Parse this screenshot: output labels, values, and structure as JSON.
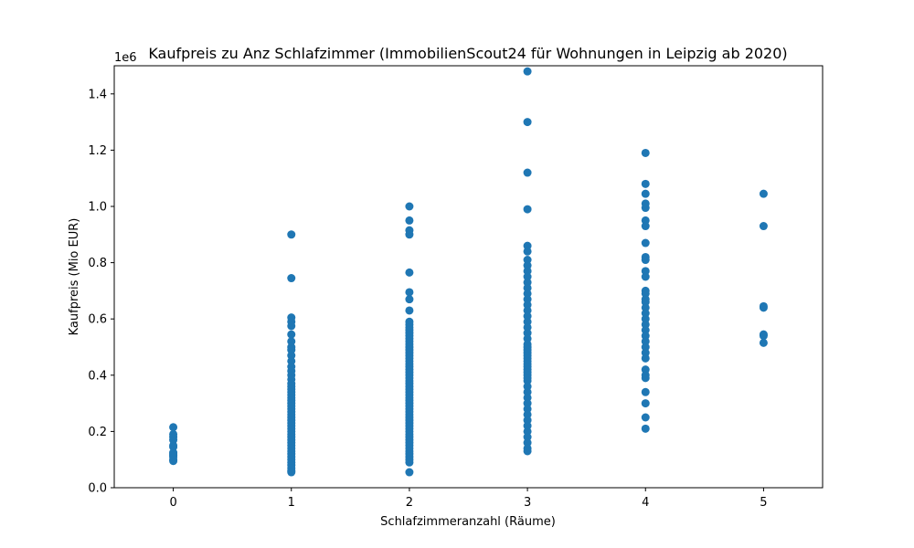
{
  "chart_data": {
    "type": "scatter",
    "title": "Kaufpreis zu Anz Schlafzimmer (ImmobilienScout24 für Wohnungen in Leipzig ab 2020)",
    "xlabel": "Schlafzimmeranzahl (Räume)",
    "ylabel": "Kaufpreis (Mio EUR)",
    "y_offset_label": "1e6",
    "xlim": [
      -0.5,
      5.5
    ],
    "ylim": [
      0,
      1500000
    ],
    "x_ticks": [
      0,
      1,
      2,
      3,
      4,
      5
    ],
    "y_ticks": [
      0,
      200000,
      400000,
      600000,
      800000,
      1000000,
      1200000,
      1400000
    ],
    "y_tick_labels": [
      "0.0",
      "0.2",
      "0.4",
      "0.6",
      "0.8",
      "1.0",
      "1.2",
      "1.4"
    ],
    "grid": false,
    "color": "#1f77b4",
    "points": [
      {
        "x": 0,
        "values": [
          95000,
          100000,
          110000,
          115000,
          120000,
          125000,
          145000,
          150000,
          170000,
          180000,
          190000,
          215000
        ]
      },
      {
        "x": 1,
        "values": [
          900000,
          745000,
          605000,
          590000,
          575000,
          545000,
          520000,
          500000,
          490000,
          470000,
          450000,
          430000,
          415000,
          400000,
          385000,
          370000,
          360000,
          350000,
          340000,
          330000,
          320000,
          310000,
          300000,
          290000,
          280000,
          270000,
          260000,
          250000,
          240000,
          230000,
          220000,
          210000,
          200000,
          190000,
          180000,
          170000,
          160000,
          150000,
          140000,
          130000,
          120000,
          110000,
          100000,
          90000,
          80000,
          70000,
          60000,
          55000
        ]
      },
      {
        "x": 2,
        "values": [
          1000000,
          950000,
          915000,
          900000,
          765000,
          695000,
          670000,
          630000,
          590000,
          580000,
          570000,
          560000,
          550000,
          540000,
          530000,
          520000,
          510000,
          500000,
          490000,
          480000,
          470000,
          460000,
          450000,
          440000,
          430000,
          420000,
          410000,
          400000,
          390000,
          380000,
          370000,
          360000,
          350000,
          340000,
          330000,
          320000,
          310000,
          300000,
          290000,
          280000,
          270000,
          260000,
          250000,
          240000,
          230000,
          220000,
          210000,
          200000,
          190000,
          180000,
          170000,
          160000,
          150000,
          140000,
          130000,
          120000,
          110000,
          100000,
          90000,
          55000
        ]
      },
      {
        "x": 3,
        "values": [
          1480000,
          1300000,
          1120000,
          990000,
          860000,
          840000,
          810000,
          790000,
          770000,
          750000,
          730000,
          710000,
          690000,
          670000,
          650000,
          630000,
          610000,
          590000,
          570000,
          550000,
          530000,
          510000,
          500000,
          490000,
          480000,
          470000,
          460000,
          450000,
          440000,
          430000,
          420000,
          410000,
          400000,
          390000,
          380000,
          360000,
          340000,
          320000,
          300000,
          280000,
          260000,
          240000,
          220000,
          200000,
          180000,
          160000,
          140000,
          130000
        ]
      },
      {
        "x": 4,
        "values": [
          1190000,
          1080000,
          1045000,
          1010000,
          995000,
          950000,
          930000,
          870000,
          820000,
          810000,
          770000,
          750000,
          700000,
          690000,
          670000,
          660000,
          640000,
          620000,
          600000,
          580000,
          560000,
          540000,
          520000,
          500000,
          480000,
          460000,
          420000,
          400000,
          390000,
          340000,
          300000,
          250000,
          210000
        ]
      },
      {
        "x": 5,
        "values": [
          1045000,
          930000,
          645000,
          640000,
          545000,
          540000,
          515000
        ]
      }
    ]
  }
}
